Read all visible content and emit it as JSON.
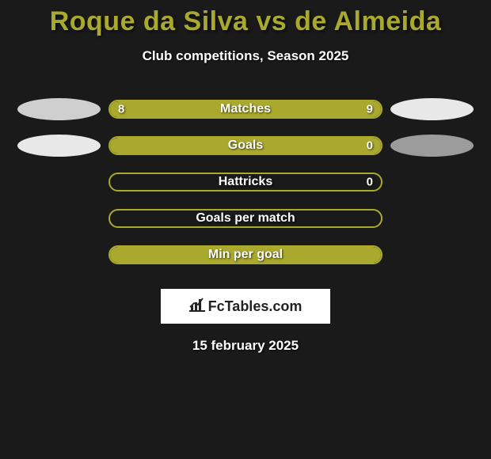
{
  "title": "Roque da Silva vs de Almeida",
  "subtitle": "Club competitions, Season 2025",
  "date": "15 february 2025",
  "logo_text": "FcTables.com",
  "colors": {
    "background": "#1a1a1a",
    "title_color": "#a9a92e",
    "bar_border": "#a9a92e",
    "fill_left": "#a9a92e",
    "fill_right": "#a9a92e",
    "ellipse_left_a": "#cfcfcf",
    "ellipse_left_b": "#e8e8e8",
    "ellipse_right_a": "#e8e8e8",
    "ellipse_right_b": "#9c9c9c"
  },
  "rows": [
    {
      "label": "Matches",
      "left_value": "8",
      "right_value": "9",
      "left_fill_pct": 47,
      "right_fill_pct": 53,
      "show_ellipses": true,
      "ellipse_left_color": "#cfcfcf",
      "ellipse_right_color": "#e8e8e8"
    },
    {
      "label": "Goals",
      "left_value": "",
      "right_value": "0",
      "left_fill_pct": 100,
      "right_fill_pct": 0,
      "show_ellipses": true,
      "ellipse_left_color": "#e8e8e8",
      "ellipse_right_color": "#9c9c9c"
    },
    {
      "label": "Hattricks",
      "left_value": "",
      "right_value": "0",
      "left_fill_pct": 0,
      "right_fill_pct": 0,
      "show_ellipses": false
    },
    {
      "label": "Goals per match",
      "left_value": "",
      "right_value": "",
      "left_fill_pct": 0,
      "right_fill_pct": 0,
      "show_ellipses": false
    },
    {
      "label": "Min per goal",
      "left_value": "",
      "right_value": "",
      "left_fill_pct": 100,
      "right_fill_pct": 0,
      "show_ellipses": false
    }
  ]
}
